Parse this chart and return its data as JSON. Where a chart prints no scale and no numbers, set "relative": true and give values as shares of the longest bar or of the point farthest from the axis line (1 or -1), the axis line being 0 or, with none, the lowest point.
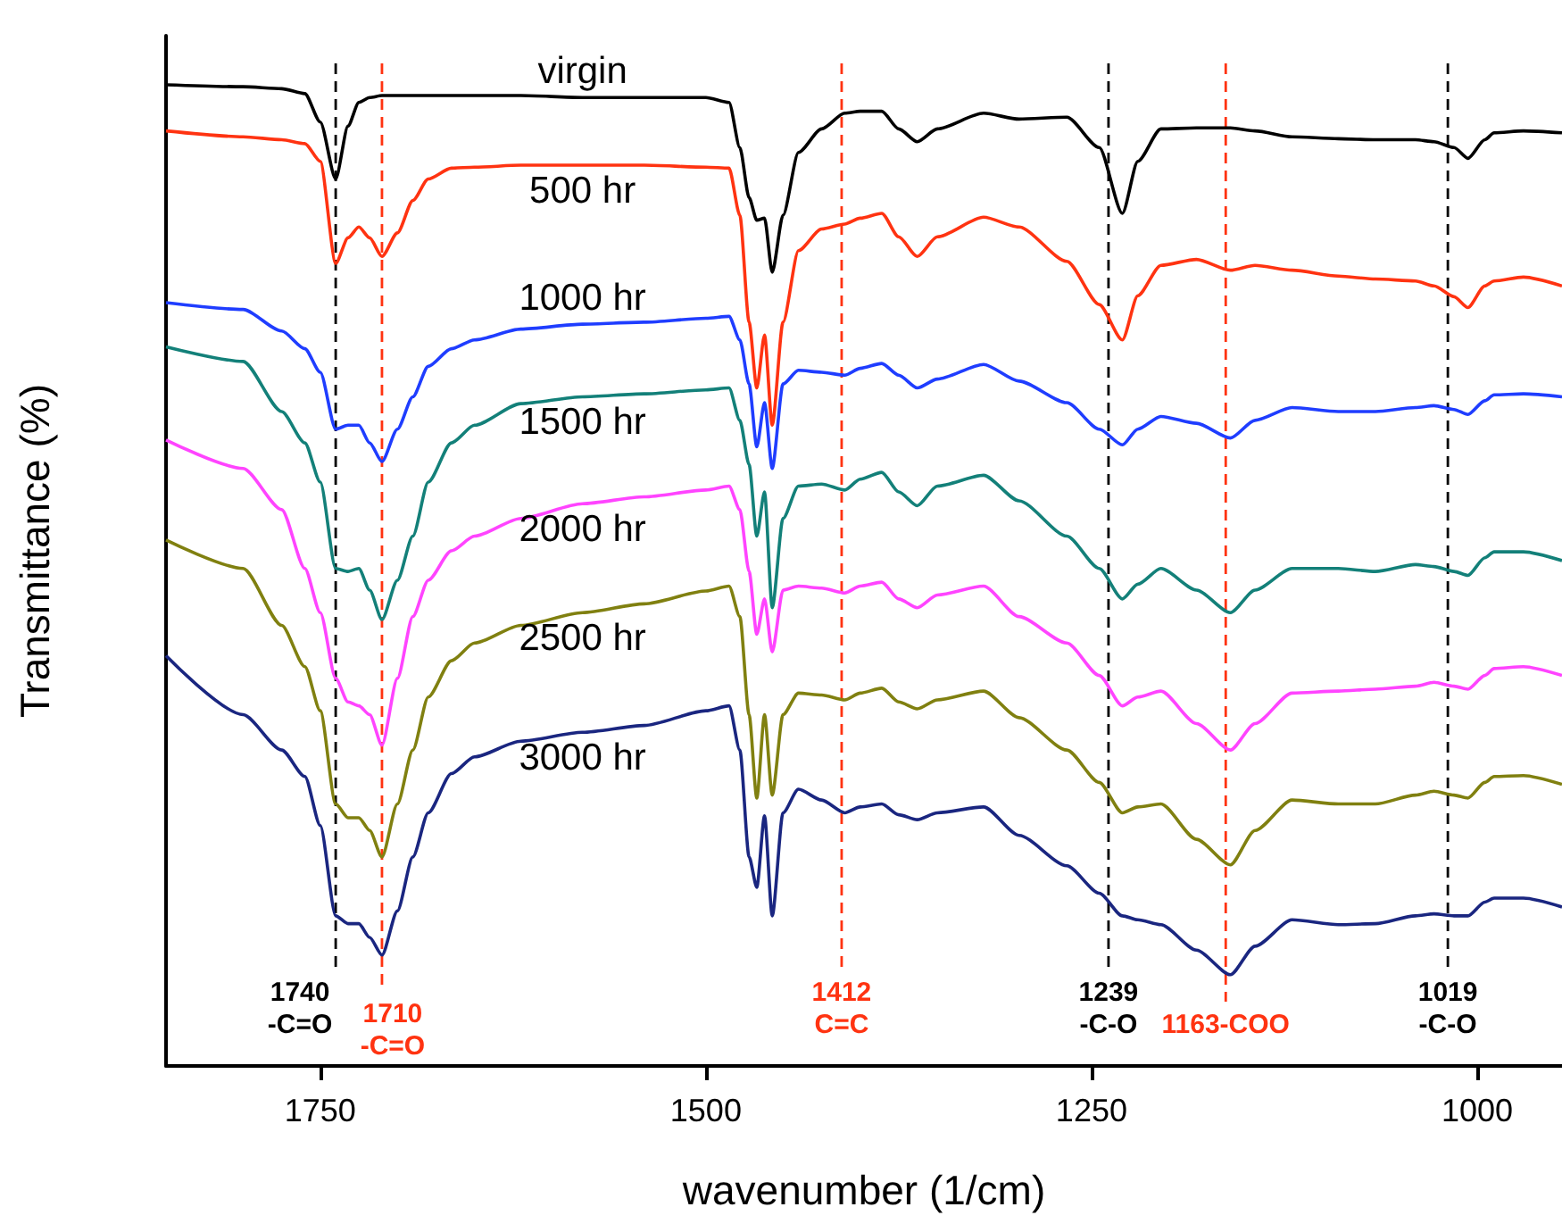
{
  "chart_data": {
    "type": "line",
    "relative": true,
    "xlabel": "wavenumber (1/cm)",
    "ylabel": "Transmittance (%)",
    "xlim": [
      1850,
      945
    ],
    "xticks": [
      1750,
      1500,
      1250,
      1000
    ],
    "x": [
      1850,
      1800,
      1775,
      1760,
      1750,
      1740,
      1732,
      1725,
      1718,
      1710,
      1700,
      1690,
      1680,
      1665,
      1650,
      1620,
      1580,
      1540,
      1500,
      1485,
      1478,
      1472,
      1467,
      1462,
      1457,
      1450,
      1440,
      1425,
      1410,
      1400,
      1386,
      1375,
      1363,
      1350,
      1320,
      1297,
      1266,
      1245,
      1230,
      1220,
      1205,
      1182,
      1160,
      1144,
      1120,
      1090,
      1066,
      1040,
      1028,
      1015,
      1006,
      995,
      989,
      970,
      945
    ],
    "series": [
      {
        "name": "virgin",
        "color": "#000000",
        "values": [
          1,
          0.998,
          0.996,
          0.991,
          0.962,
          0.904,
          0.958,
          0.982,
          0.987,
          0.989,
          0.989,
          0.989,
          0.989,
          0.989,
          0.989,
          0.989,
          0.987,
          0.987,
          0.987,
          0.982,
          0.936,
          0.885,
          0.862,
          0.864,
          0.809,
          0.867,
          0.931,
          0.955,
          0.971,
          0.973,
          0.973,
          0.955,
          0.942,
          0.955,
          0.971,
          0.965,
          0.967,
          0.936,
          0.869,
          0.922,
          0.955,
          0.956,
          0.956,
          0.953,
          0.947,
          0.945,
          0.944,
          0.944,
          0.942,
          0.936,
          0.925,
          0.944,
          0.951,
          0.953,
          0.951
        ]
      },
      {
        "name": "500 hr",
        "color": "#ff3311",
        "values": [
          0.953,
          0.947,
          0.944,
          0.94,
          0.922,
          0.818,
          0.844,
          0.855,
          0.844,
          0.825,
          0.849,
          0.882,
          0.904,
          0.915,
          0.916,
          0.918,
          0.918,
          0.918,
          0.916,
          0.915,
          0.867,
          0.758,
          0.691,
          0.745,
          0.653,
          0.758,
          0.831,
          0.853,
          0.858,
          0.864,
          0.869,
          0.845,
          0.825,
          0.845,
          0.865,
          0.855,
          0.82,
          0.776,
          0.74,
          0.785,
          0.816,
          0.822,
          0.811,
          0.816,
          0.811,
          0.805,
          0.802,
          0.8,
          0.795,
          0.784,
          0.773,
          0.795,
          0.8,
          0.804,
          0.795
        ]
      },
      {
        "name": "1000 hr",
        "color": "#1f3dff",
        "values": [
          0.778,
          0.771,
          0.749,
          0.731,
          0.707,
          0.649,
          0.653,
          0.653,
          0.635,
          0.616,
          0.649,
          0.682,
          0.713,
          0.731,
          0.74,
          0.751,
          0.756,
          0.758,
          0.762,
          0.764,
          0.74,
          0.695,
          0.631,
          0.676,
          0.609,
          0.695,
          0.709,
          0.707,
          0.704,
          0.711,
          0.716,
          0.704,
          0.691,
          0.7,
          0.715,
          0.698,
          0.676,
          0.649,
          0.633,
          0.649,
          0.662,
          0.655,
          0.64,
          0.658,
          0.671,
          0.667,
          0.667,
          0.671,
          0.673,
          0.669,
          0.664,
          0.678,
          0.684,
          0.685,
          0.682
        ]
      },
      {
        "name": "1500 hr",
        "color": "#138079",
        "values": [
          0.733,
          0.718,
          0.667,
          0.635,
          0.595,
          0.507,
          0.504,
          0.507,
          0.485,
          0.455,
          0.495,
          0.54,
          0.595,
          0.635,
          0.653,
          0.675,
          0.682,
          0.685,
          0.689,
          0.691,
          0.658,
          0.613,
          0.54,
          0.585,
          0.467,
          0.558,
          0.591,
          0.593,
          0.587,
          0.598,
          0.605,
          0.585,
          0.571,
          0.591,
          0.602,
          0.576,
          0.54,
          0.507,
          0.476,
          0.491,
          0.507,
          0.485,
          0.462,
          0.485,
          0.507,
          0.507,
          0.504,
          0.511,
          0.509,
          0.504,
          0.5,
          0.518,
          0.524,
          0.524,
          0.515
        ]
      },
      {
        "name": "2000 hr",
        "color": "#ff44ff",
        "values": [
          0.638,
          0.609,
          0.567,
          0.507,
          0.462,
          0.395,
          0.371,
          0.367,
          0.358,
          0.327,
          0.395,
          0.458,
          0.495,
          0.525,
          0.54,
          0.558,
          0.573,
          0.58,
          0.587,
          0.591,
          0.567,
          0.504,
          0.44,
          0.476,
          0.422,
          0.485,
          0.489,
          0.487,
          0.482,
          0.489,
          0.493,
          0.476,
          0.467,
          0.48,
          0.489,
          0.458,
          0.431,
          0.398,
          0.367,
          0.376,
          0.382,
          0.349,
          0.322,
          0.349,
          0.38,
          0.382,
          0.384,
          0.387,
          0.391,
          0.387,
          0.384,
          0.398,
          0.405,
          0.407,
          0.398
        ]
      },
      {
        "name": "2500 hr",
        "color": "#808010",
        "values": [
          0.536,
          0.507,
          0.449,
          0.407,
          0.362,
          0.267,
          0.253,
          0.253,
          0.24,
          0.213,
          0.267,
          0.322,
          0.376,
          0.413,
          0.431,
          0.449,
          0.462,
          0.471,
          0.484,
          0.489,
          0.458,
          0.358,
          0.273,
          0.358,
          0.276,
          0.358,
          0.38,
          0.378,
          0.373,
          0.38,
          0.385,
          0.371,
          0.364,
          0.373,
          0.382,
          0.355,
          0.322,
          0.289,
          0.258,
          0.264,
          0.267,
          0.231,
          0.205,
          0.24,
          0.271,
          0.267,
          0.267,
          0.276,
          0.28,
          0.276,
          0.273,
          0.289,
          0.295,
          0.296,
          0.287
        ]
      },
      {
        "name": "3000 hr",
        "color": "#1a2680",
        "values": [
          0.418,
          0.358,
          0.322,
          0.295,
          0.245,
          0.153,
          0.145,
          0.145,
          0.131,
          0.113,
          0.158,
          0.213,
          0.258,
          0.298,
          0.315,
          0.331,
          0.34,
          0.347,
          0.362,
          0.367,
          0.322,
          0.213,
          0.182,
          0.255,
          0.153,
          0.258,
          0.282,
          0.271,
          0.258,
          0.264,
          0.267,
          0.256,
          0.251,
          0.258,
          0.264,
          0.235,
          0.204,
          0.176,
          0.153,
          0.149,
          0.144,
          0.118,
          0.093,
          0.122,
          0.149,
          0.144,
          0.145,
          0.153,
          0.155,
          0.153,
          0.153,
          0.167,
          0.171,
          0.171,
          0.162
        ]
      }
    ],
    "ref_lines": [
      {
        "axis": "x",
        "value": 1740,
        "label": "1740\n-C=O",
        "color": "#000000",
        "line_style": "dashed"
      },
      {
        "axis": "x",
        "value": 1710,
        "label": "1710\n-C=O",
        "color": "#ff3311",
        "line_style": "dashed"
      },
      {
        "axis": "x",
        "value": 1412,
        "label": "1412\nC=C",
        "color": "#ff3311",
        "line_style": "dashed"
      },
      {
        "axis": "x",
        "value": 1239,
        "label": "1239\n-C-O",
        "color": "#000000",
        "line_style": "dashed"
      },
      {
        "axis": "x",
        "value": 1163,
        "label": "1163-COO",
        "color": "#ff3311",
        "line_style": "dashed"
      },
      {
        "axis": "x",
        "value": 1019,
        "label": "1019\n-C-O",
        "color": "#000000",
        "line_style": "dashed"
      }
    ]
  }
}
